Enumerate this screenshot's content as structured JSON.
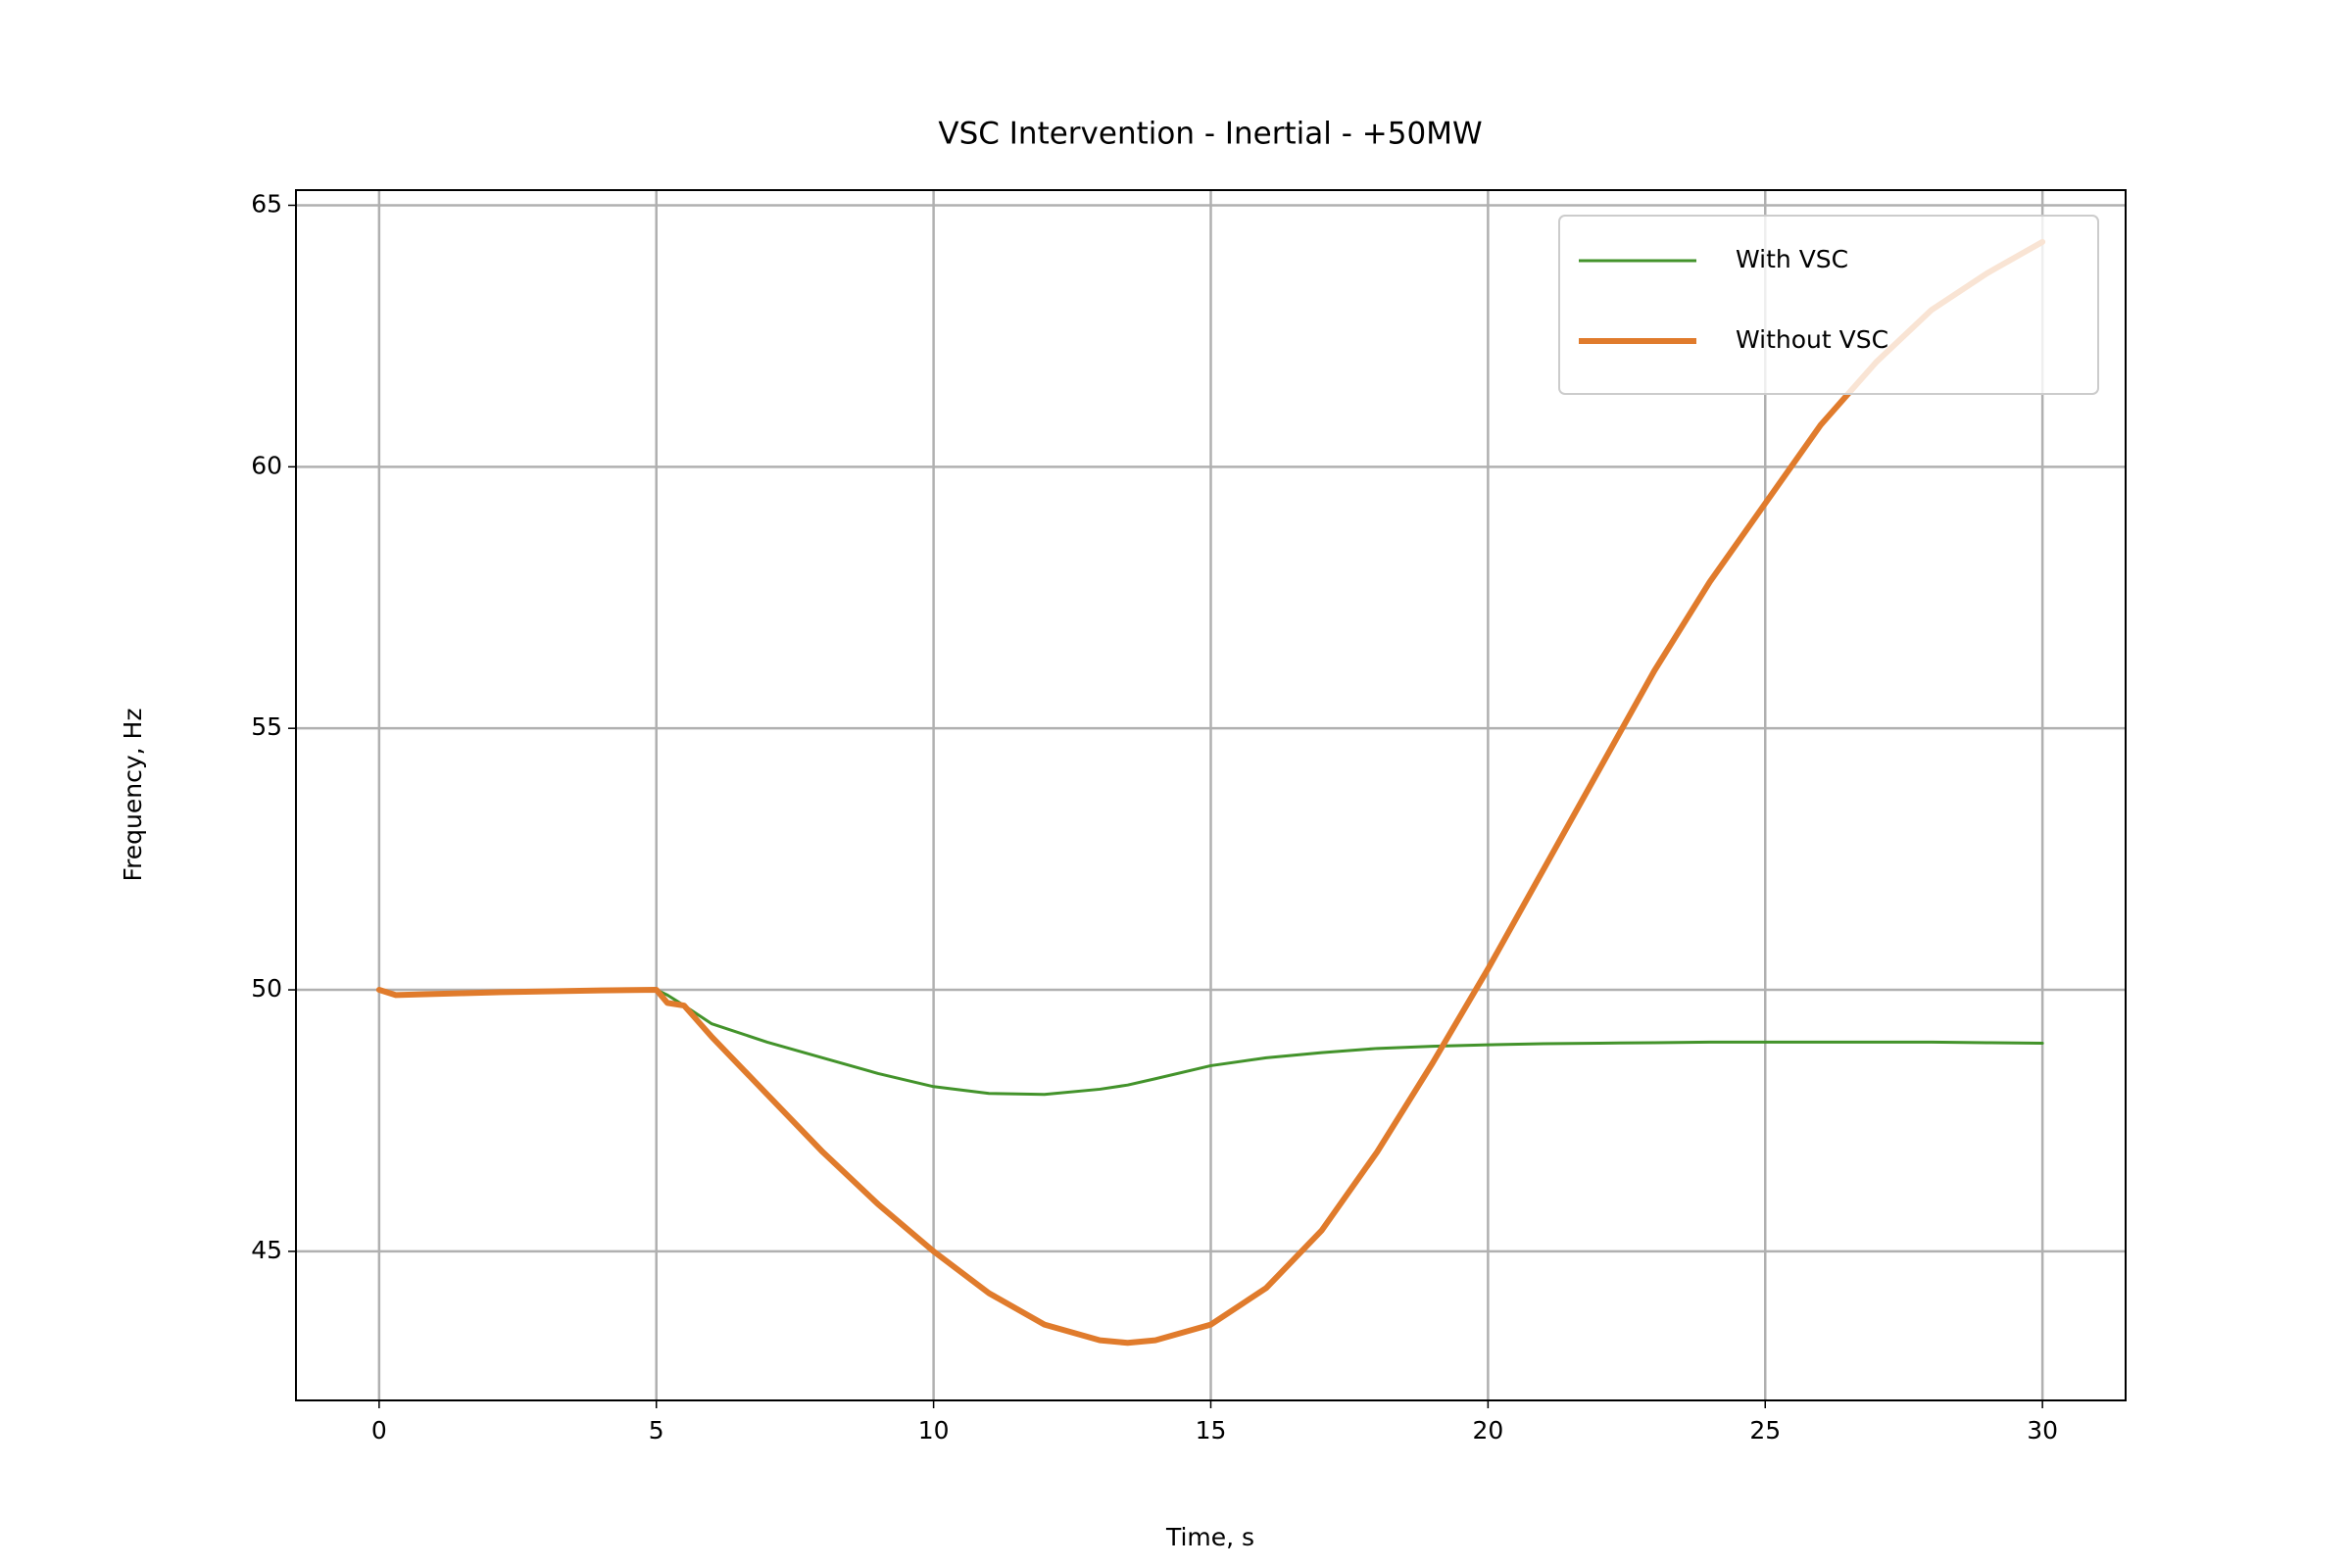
{
  "chart_data": {
    "type": "line",
    "title": "VSC Intervention - Inertial - +50MW",
    "xlabel": "Time, s",
    "ylabel": "Frequency, Hz",
    "x": [
      0,
      0.3,
      1,
      2,
      3,
      4,
      5,
      5.2,
      5.5,
      6,
      7,
      8,
      9,
      10,
      11,
      12,
      13,
      13.5,
      14,
      15,
      16,
      17,
      18,
      19,
      20,
      21,
      22,
      23,
      24,
      25,
      26,
      27,
      28,
      29,
      30
    ],
    "series": [
      {
        "name": "With VSC",
        "color": "#43932b",
        "width": 3,
        "values": [
          50,
          49.9,
          49.92,
          49.95,
          49.97,
          49.99,
          50,
          49.9,
          49.7,
          49.35,
          49.0,
          48.7,
          48.4,
          48.15,
          48.02,
          48.0,
          48.1,
          48.18,
          48.3,
          48.55,
          48.7,
          48.8,
          48.88,
          48.92,
          48.95,
          48.97,
          48.98,
          48.99,
          49.0,
          49.0,
          49.0,
          49.0,
          49.0,
          48.99,
          48.98
        ]
      },
      {
        "name": "Without VSC",
        "color": "#e07b2c",
        "width": 6,
        "values": [
          50,
          49.9,
          49.92,
          49.95,
          49.97,
          49.99,
          50,
          49.75,
          49.7,
          49.1,
          48.0,
          46.9,
          45.9,
          45.0,
          44.2,
          43.6,
          43.3,
          43.25,
          43.3,
          43.6,
          44.3,
          45.4,
          46.9,
          48.6,
          50.4,
          52.3,
          54.2,
          56.1,
          57.8,
          59.3,
          60.8,
          62.0,
          63.0,
          63.7,
          64.3
        ]
      }
    ],
    "xlim": [
      -1.5,
      31.5
    ],
    "ylim": [
      42.15,
      65.29
    ],
    "xticks": [
      0,
      5,
      10,
      15,
      20,
      25,
      30
    ],
    "yticks": [
      45,
      50,
      55,
      60,
      65
    ],
    "grid": true,
    "legend": "upper right"
  }
}
